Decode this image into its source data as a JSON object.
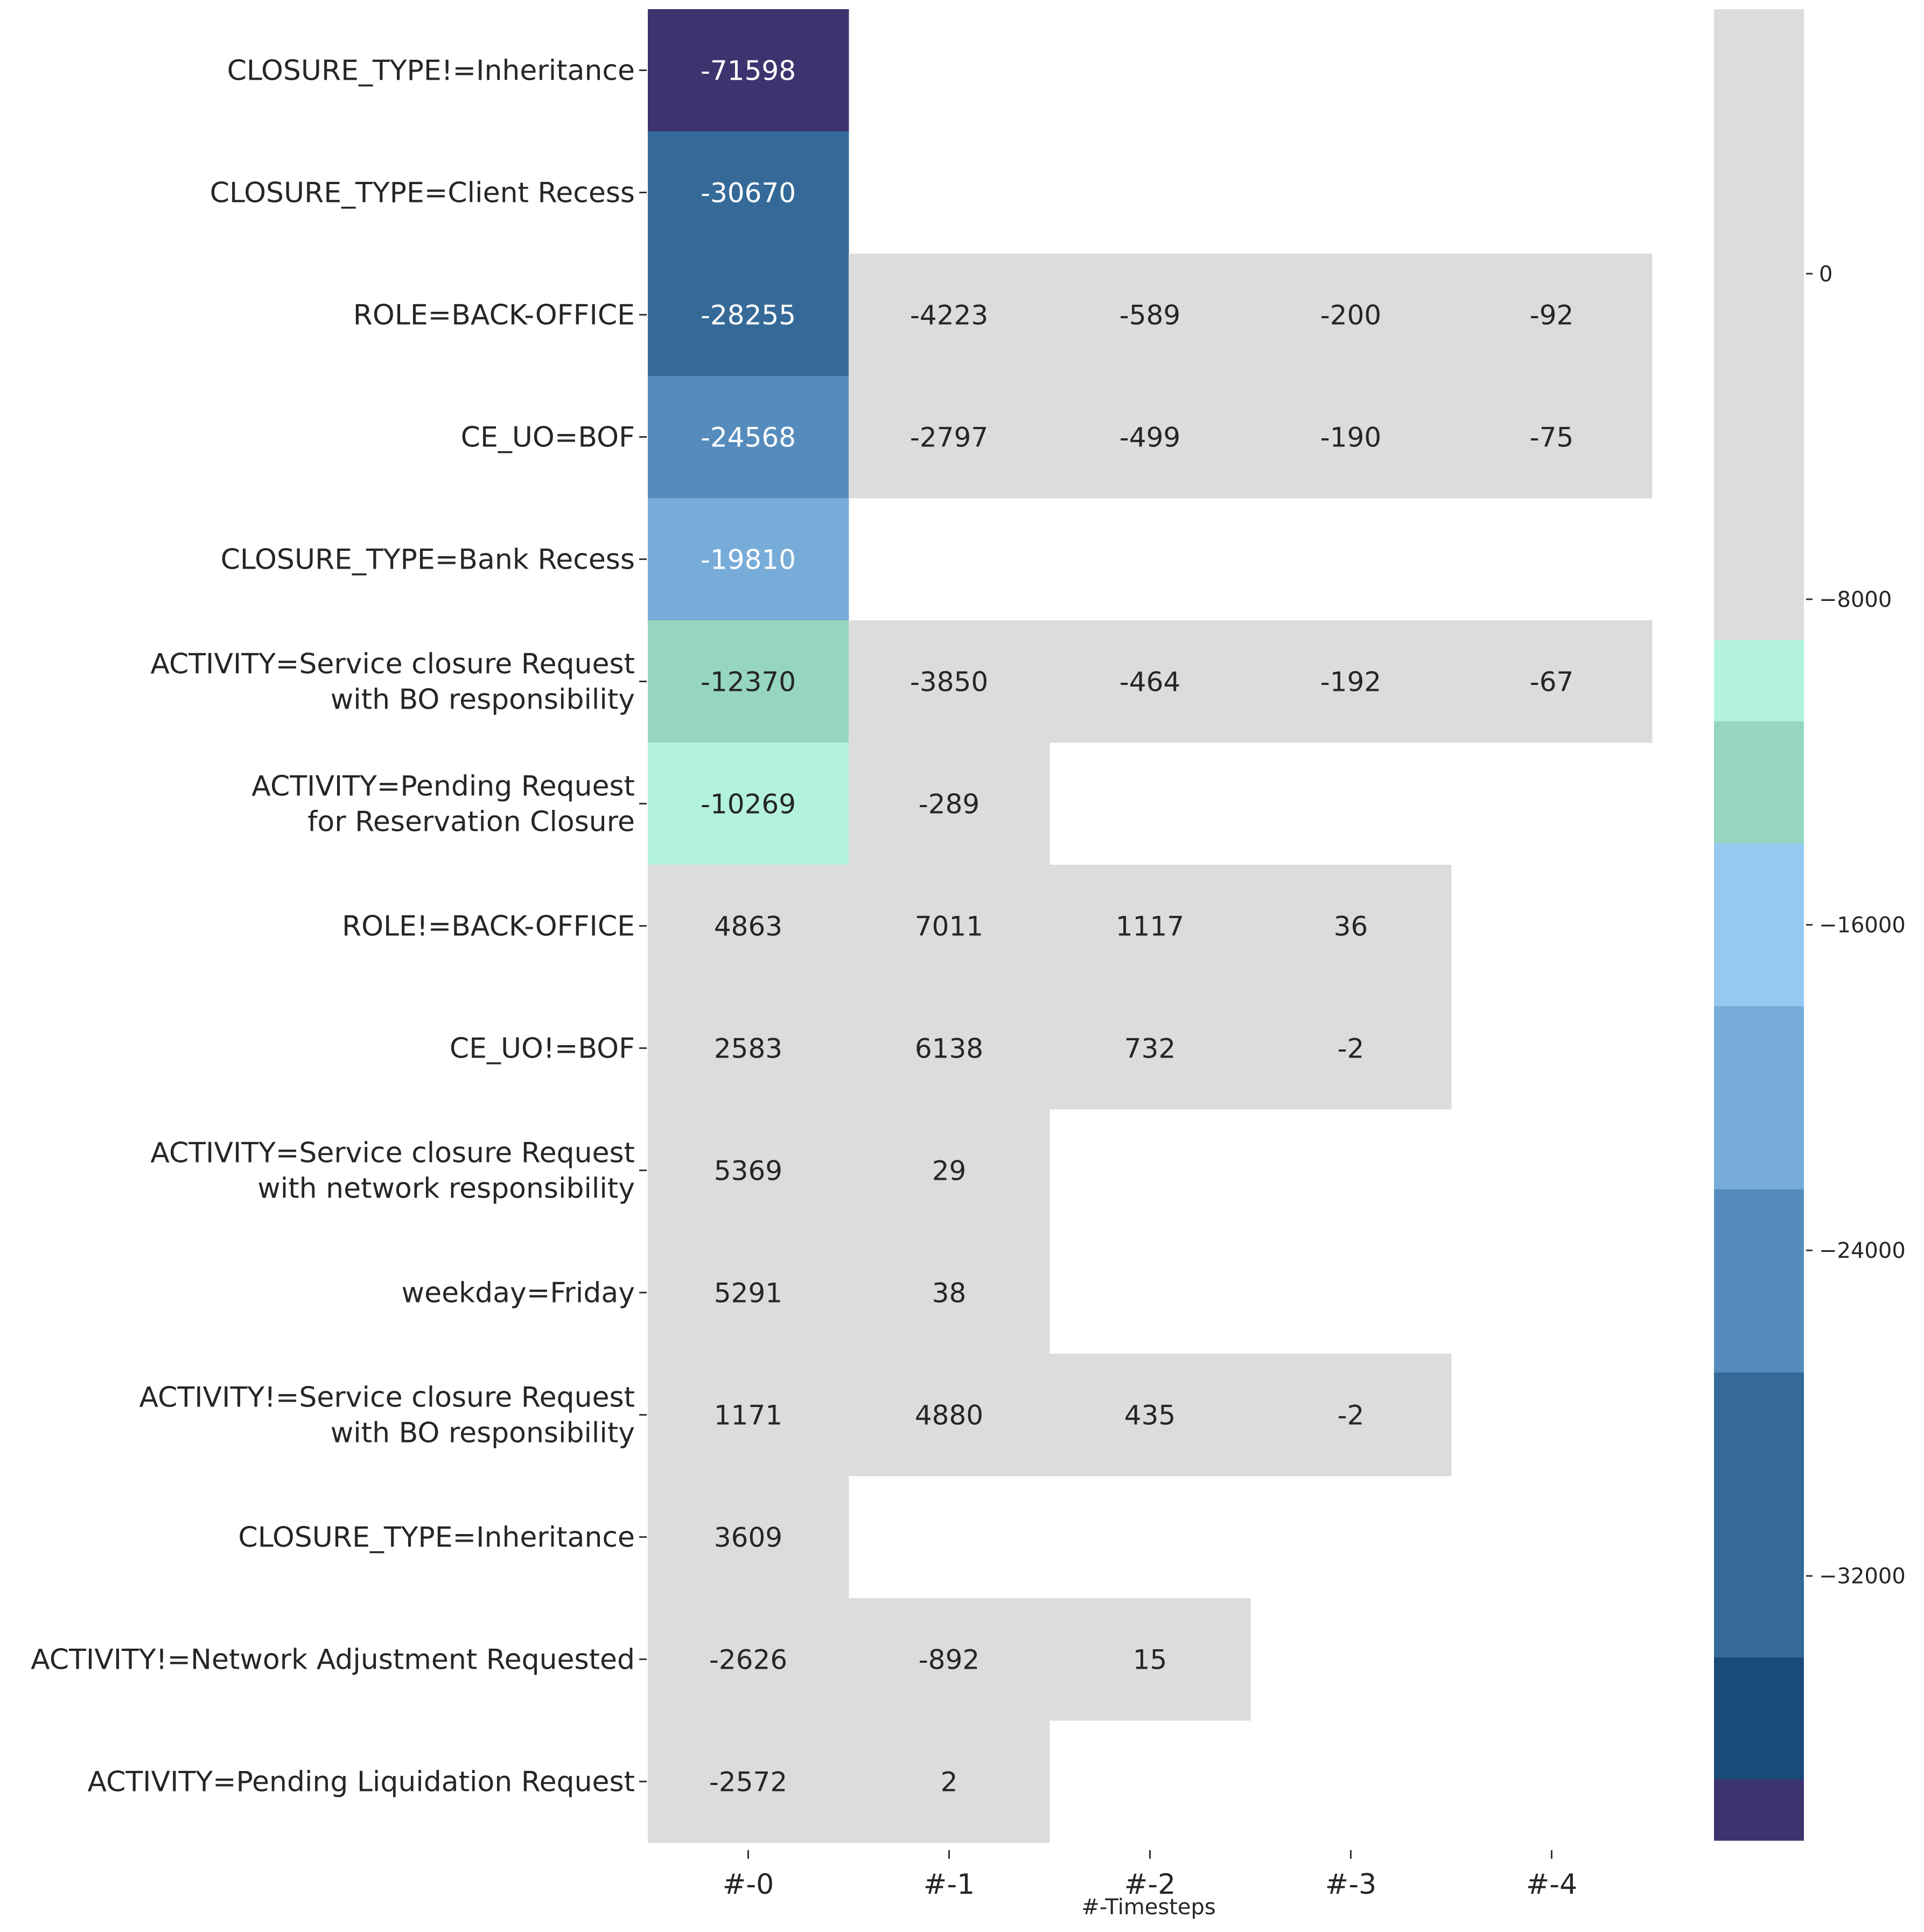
{
  "chart_data": {
    "type": "heatmap",
    "xlabel": "#-Timesteps",
    "x_categories": [
      "#-0",
      "#-1",
      "#-2",
      "#-3",
      "#-4"
    ],
    "y_categories": [
      "CLOSURE_TYPE!=Inheritance",
      "CLOSURE_TYPE=Client Recess",
      "ROLE=BACK-OFFICE",
      "CE_UO=BOF",
      "CLOSURE_TYPE=Bank Recess",
      "ACTIVITY=Service closure Request\nwith BO responsibility",
      "ACTIVITY=Pending Request\nfor Reservation Closure",
      "ROLE!=BACK-OFFICE",
      "CE_UO!=BOF",
      "ACTIVITY=Service closure Request\nwith network responsibility",
      "weekday=Friday",
      "ACTIVITY!=Service closure Request\nwith BO responsibility",
      "CLOSURE_TYPE=Inheritance",
      "ACTIVITY!=Network Adjustment Requested",
      "ACTIVITY=Pending Liquidation Request"
    ],
    "values": [
      [
        -71598,
        null,
        null,
        null,
        null
      ],
      [
        -30670,
        null,
        null,
        null,
        null
      ],
      [
        -28255,
        -4223,
        -589,
        -200,
        -92
      ],
      [
        -24568,
        -2797,
        -499,
        -190,
        -75
      ],
      [
        -19810,
        null,
        null,
        null,
        null
      ],
      [
        -12370,
        -3850,
        -464,
        -192,
        -67
      ],
      [
        -10269,
        -289,
        null,
        null,
        null
      ],
      [
        4863,
        7011,
        1117,
        36,
        null
      ],
      [
        2583,
        6138,
        732,
        -2,
        null
      ],
      [
        5369,
        29,
        null,
        null,
        null
      ],
      [
        5291,
        38,
        null,
        null,
        null
      ],
      [
        1171,
        4880,
        435,
        -2,
        null
      ],
      [
        3609,
        null,
        null,
        null,
        null
      ],
      [
        -2626,
        -892,
        15,
        null,
        null
      ],
      [
        -2572,
        2,
        null,
        null,
        null
      ]
    ],
    "colorbar": {
      "ticks": [
        0,
        -8000,
        -16000,
        -24000,
        -32000
      ],
      "tick_labels": [
        "0",
        "−8000",
        "−16000",
        "−24000",
        "−32000"
      ],
      "range": [
        -38500,
        6500
      ]
    },
    "colors": {
      "neutral": "#dcdcdc",
      "mint": "#b3f2dd",
      "seafoam": "#96d6c0",
      "sky": "#96c9f2",
      "light_blue": "#78acd8",
      "mid_blue": "#568cbd",
      "steel_blue": "#356a98",
      "dark_blue": "#1a4a78",
      "indigo": "#3d336f",
      "text_light": "#ffffff",
      "text_dark": "#262626"
    }
  }
}
